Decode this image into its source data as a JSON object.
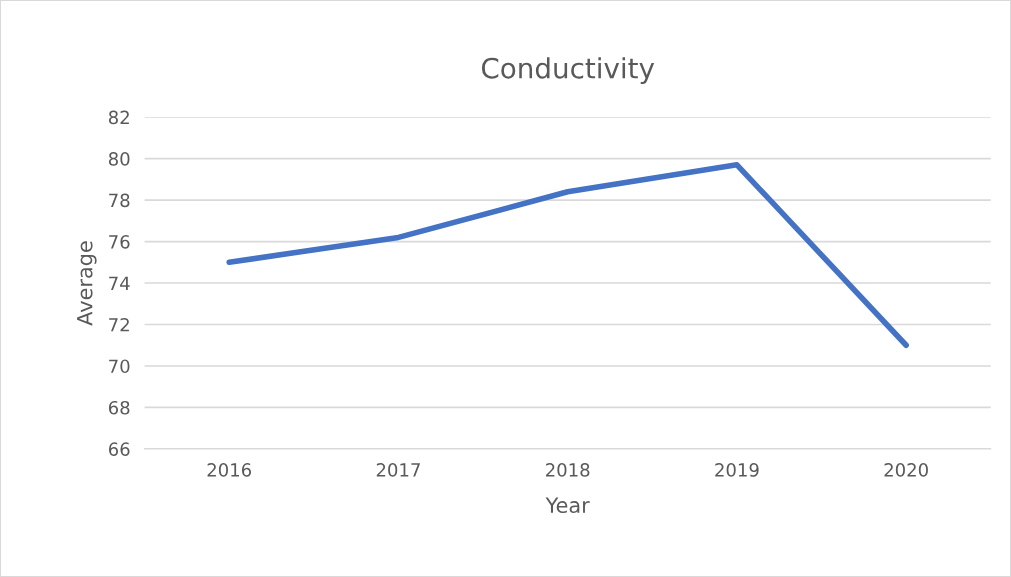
{
  "chart_data": {
    "type": "line",
    "title": "Conductivity",
    "xlabel": "Year",
    "ylabel": "Average",
    "categories": [
      "2016",
      "2017",
      "2018",
      "2019",
      "2020"
    ],
    "series": [
      {
        "color": "#4472c4",
        "values": [
          75.0,
          76.2,
          78.4,
          79.7,
          71.0
        ]
      }
    ],
    "ylim": [
      66,
      82
    ],
    "yticks": [
      66,
      68,
      70,
      72,
      74,
      76,
      78,
      80,
      82
    ],
    "grid": "y",
    "marker": "none",
    "line_style": "solid"
  }
}
